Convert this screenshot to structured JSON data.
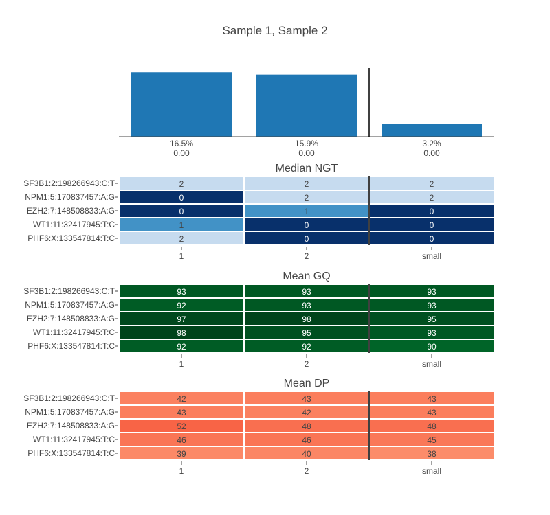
{
  "title": "Sample 1, Sample 2",
  "chart_data": [
    {
      "type": "bar",
      "categories": [
        "1",
        "2",
        "small"
      ],
      "values": [
        16.5,
        15.9,
        3.2
      ],
      "unit": "%",
      "labels": [
        {
          "pct": "16.5%",
          "sub": "0.00"
        },
        {
          "pct": "15.9%",
          "sub": "0.00"
        },
        {
          "pct": "3.2%",
          "sub": "0.00"
        }
      ],
      "bar_color": "#1f77b4",
      "ylim": [
        0,
        17.6
      ],
      "grid": false
    },
    {
      "type": "heatmap",
      "title": "Median NGT",
      "colorscale": "Blues",
      "rows": [
        "SF3B1:2:198266943:C:T",
        "NPM1:5:170837457:A:G",
        "EZH2:7:148508833:A:G",
        "WT1:11:32417945:T:C",
        "PHF6:X:133547814:T:C"
      ],
      "columns": [
        "1",
        "2",
        "small"
      ],
      "values": [
        [
          2,
          2,
          2
        ],
        [
          0,
          2,
          2
        ],
        [
          0,
          1,
          0
        ],
        [
          1,
          0,
          0
        ],
        [
          2,
          0,
          0
        ]
      ],
      "range": [
        0,
        2
      ]
    },
    {
      "type": "heatmap",
      "title": "Mean GQ",
      "colorscale": "Greens",
      "rows": [
        "SF3B1:2:198266943:C:T",
        "NPM1:5:170837457:A:G",
        "EZH2:7:148508833:A:G",
        "WT1:11:32417945:T:C",
        "PHF6:X:133547814:T:C"
      ],
      "columns": [
        "1",
        "2",
        "small"
      ],
      "values": [
        [
          93,
          93,
          93
        ],
        [
          92,
          93,
          93
        ],
        [
          97,
          98,
          95
        ],
        [
          98,
          95,
          93
        ],
        [
          92,
          92,
          90
        ]
      ],
      "range": [
        90,
        98
      ]
    },
    {
      "type": "heatmap",
      "title": "Mean DP",
      "colorscale": "Reds",
      "rows": [
        "SF3B1:2:198266943:C:T",
        "NPM1:5:170837457:A:G",
        "EZH2:7:148508833:A:G",
        "WT1:11:32417945:T:C",
        "PHF6:X:133547814:T:C"
      ],
      "columns": [
        "1",
        "2",
        "small"
      ],
      "values": [
        [
          42,
          43,
          43
        ],
        [
          43,
          42,
          43
        ],
        [
          52,
          48,
          48
        ],
        [
          46,
          46,
          45
        ],
        [
          39,
          40,
          38
        ]
      ],
      "range": [
        38,
        52
      ]
    }
  ],
  "separator_after_column": 2
}
